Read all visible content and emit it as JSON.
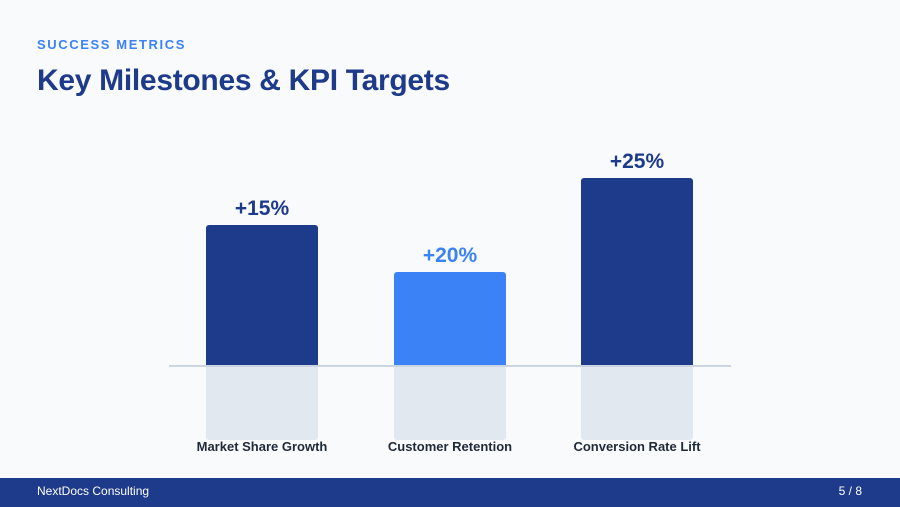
{
  "header": {
    "eyebrow": "SUCCESS METRICS",
    "title": "Key Milestones & KPI Targets"
  },
  "chart_data": {
    "type": "bar",
    "categories": [
      "Market Share Growth",
      "Customer Retention",
      "Conversion Rate Lift"
    ],
    "values": [
      15,
      20,
      25
    ],
    "data_labels": [
      "+15%",
      "+20%",
      "+25%"
    ],
    "colors": [
      "#1e3a8a",
      "#3b82f6",
      "#1e3a8a"
    ],
    "grid": false
  },
  "footer": {
    "company": "NextDocs Consulting",
    "page": "5 / 8"
  }
}
